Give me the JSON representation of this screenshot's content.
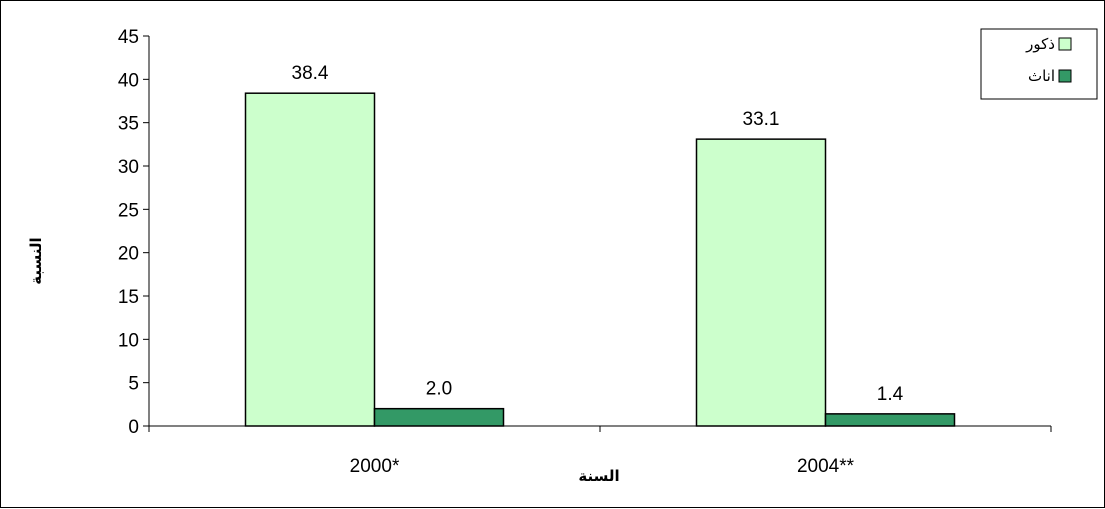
{
  "chart_data": {
    "type": "bar",
    "categories": [
      "*2000",
      "**2004"
    ],
    "series": [
      {
        "name": "ذكور",
        "values": [
          38.4,
          33.1
        ],
        "color": "#ccffcc"
      },
      {
        "name": "اناث",
        "values": [
          2.0,
          1.4
        ],
        "color": "#339966"
      }
    ],
    "value_labels": [
      [
        "38.4",
        "33.1"
      ],
      [
        "2.0",
        "1.4"
      ]
    ],
    "xlabel": "السنة",
    "ylabel": "النسبة",
    "ylim": [
      0,
      45
    ],
    "yticks": [
      0,
      5,
      10,
      15,
      20,
      25,
      30,
      35,
      40,
      45
    ],
    "grid": false,
    "legend_position": "top-right"
  }
}
